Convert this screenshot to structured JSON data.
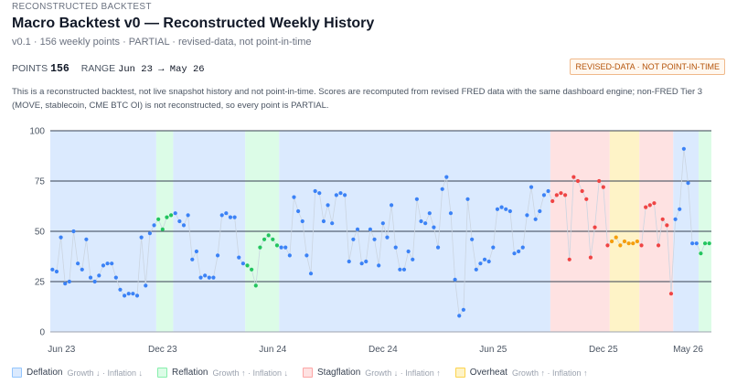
{
  "header": {
    "eyebrow": "RECONSTRUCTED BACKTEST",
    "title": "Macro Backtest v0 — Reconstructed Weekly History",
    "subtitle": "v0.1 · 156 weekly points · PARTIAL · revised-data, not point-in-time",
    "points_label": "POINTS",
    "points_value": "156",
    "range_label": "RANGE",
    "range_value": "Jun 23 → May 26",
    "badge": "REVISED-DATA · NOT POINT-IN-TIME",
    "description": "This is a reconstructed backtest, not live snapshot history and not point-in-time. Scores are recomputed from revised FRED data with the same dashboard engine; non-FRED Tier 3 (MOVE, stablecoin, CME BTC OI) is not reconstructed, so every point is PARTIAL."
  },
  "legend": [
    {
      "name": "Deflation",
      "rule": "Growth ↓ · Inflation ↓",
      "fill": "#dbeafe",
      "border": "#93c5fd"
    },
    {
      "name": "Reflation",
      "rule": "Growth ↑ · Inflation ↓",
      "fill": "#dcfce7",
      "border": "#86efac"
    },
    {
      "name": "Stagflation",
      "rule": "Growth ↓ · Inflation ↑",
      "fill": "#fee2e2",
      "border": "#fca5a5"
    },
    {
      "name": "Overheat",
      "rule": "Growth ↑ · Inflation ↑",
      "fill": "#fef3c7",
      "border": "#fcd34d"
    }
  ],
  "chart_data": {
    "type": "scatter",
    "title": "",
    "xlabel": "",
    "ylabel": "",
    "ylim": [
      0,
      100
    ],
    "yticks": [
      "0",
      "25",
      "50",
      "75",
      "100"
    ],
    "xticks": [
      "Jun 23",
      "Dec 23",
      "Jun 24",
      "Dec 24",
      "Jun 25",
      "Dec 25",
      "May 26"
    ],
    "x_range": [
      "Jun 23",
      "May 26"
    ],
    "grid": true,
    "regime_colors": {
      "Deflation": {
        "band": "#dbeafe",
        "point": "#3b82f6"
      },
      "Reflation": {
        "band": "#dcfce7",
        "point": "#22c55e"
      },
      "Stagflation": {
        "band": "#fee2e2",
        "point": "#ef4444"
      },
      "Overheat": {
        "band": "#fef3c7",
        "point": "#f59e0b"
      }
    },
    "regimes": [
      {
        "regime": "Deflation",
        "start": 0,
        "end": 25
      },
      {
        "regime": "Reflation",
        "start": 25,
        "end": 29
      },
      {
        "regime": "Deflation",
        "start": 29,
        "end": 46
      },
      {
        "regime": "Reflation",
        "start": 46,
        "end": 54
      },
      {
        "regime": "Deflation",
        "start": 54,
        "end": 118
      },
      {
        "regime": "Stagflation",
        "start": 118,
        "end": 132
      },
      {
        "regime": "Overheat",
        "start": 132,
        "end": 139
      },
      {
        "regime": "Stagflation",
        "start": 139,
        "end": 147
      },
      {
        "regime": "Deflation",
        "start": 147,
        "end": 153
      },
      {
        "regime": "Reflation",
        "start": 153,
        "end": 156
      }
    ],
    "values": [
      31,
      30,
      47,
      24,
      25,
      50,
      34,
      31,
      46,
      27,
      25,
      28,
      33,
      34,
      34,
      27,
      21,
      18,
      19,
      19,
      18,
      47,
      23,
      49,
      53,
      56,
      51,
      57,
      58,
      59,
      55,
      53,
      58,
      36,
      40,
      27,
      28,
      27,
      27,
      38,
      58,
      59,
      57,
      57,
      37,
      34,
      33,
      31,
      23,
      42,
      46,
      48,
      46,
      43,
      42,
      42,
      38,
      67,
      60,
      55,
      38,
      29,
      70,
      69,
      55,
      63,
      54,
      68,
      69,
      68,
      35,
      46,
      51,
      34,
      35,
      51,
      46,
      33,
      54,
      47,
      63,
      42,
      31,
      31,
      40,
      36,
      66,
      55,
      54,
      59,
      52,
      42,
      71,
      77,
      59,
      26,
      8,
      11,
      66,
      46,
      31,
      34,
      36,
      35,
      42,
      61,
      62,
      61,
      60,
      39,
      40,
      42,
      58,
      72,
      56,
      60,
      68,
      70,
      65,
      68,
      69,
      68,
      36,
      77,
      75,
      70,
      66,
      37,
      52,
      75,
      72,
      43,
      45,
      47,
      43,
      45,
      44,
      44,
      45,
      43,
      62,
      63,
      64,
      43,
      56,
      53,
      19,
      56,
      61,
      91,
      74,
      44,
      44,
      39,
      44,
      44
    ]
  }
}
